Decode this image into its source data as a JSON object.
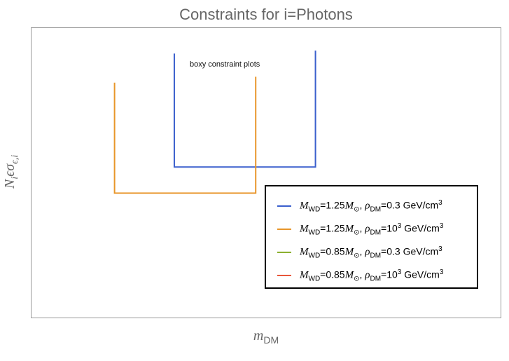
{
  "chart_data": {
    "type": "line",
    "title": "Constraints for i=Photons",
    "xlabel": "m_DM",
    "ylabel": "N_i ϵσ_ϵ,i",
    "annotation": "boxy constraint plots",
    "xlim": [
      0,
      100
    ],
    "ylim": [
      0,
      100
    ],
    "grid": false,
    "legend_placement": "bottom-right",
    "series": [
      {
        "name": "M_WD=1.25M_⊙, ρ_DM=0.3 GeV/cm3",
        "color": "#3a5fcd",
        "points": [
          [
            30.5,
            91
          ],
          [
            30.5,
            52
          ],
          [
            60.5,
            52
          ],
          [
            60.5,
            92
          ]
        ]
      },
      {
        "name": "M_WD=1.25M_⊙, ρ_DM=10^3 GeV/cm3",
        "color": "#e8962a",
        "points": [
          [
            17.8,
            81
          ],
          [
            17.8,
            43
          ],
          [
            47.8,
            43
          ],
          [
            47.8,
            83
          ]
        ]
      },
      {
        "name": "M_WD=0.85M_⊙, ρ_DM=0.3 GeV/cm3",
        "color": "#8cb030",
        "points": []
      },
      {
        "name": "M_WD=0.85M_⊙, ρ_DM=10^3 GeV/cm3",
        "color": "#e8563a",
        "points": []
      }
    ]
  },
  "legend": {
    "items": [
      {
        "m_sym": "M",
        "m_sub": "WD",
        "m_val": "=1.25",
        "sun_sym": "M",
        "sun_sub": "⊙",
        "rho_sym": "ρ",
        "rho_sub": "DM",
        "rho_val": "=0.3",
        "rho_exp": "",
        "unit": "GeV/cm",
        "unit_exp": "3"
      },
      {
        "m_sym": "M",
        "m_sub": "WD",
        "m_val": "=1.25",
        "sun_sym": "M",
        "sun_sub": "⊙",
        "rho_sym": "ρ",
        "rho_sub": "DM",
        "rho_val": "=10",
        "rho_exp": "3",
        "unit": "GeV/cm",
        "unit_exp": "3"
      },
      {
        "m_sym": "M",
        "m_sub": "WD",
        "m_val": "=0.85",
        "sun_sym": "M",
        "sun_sub": "⊙",
        "rho_sym": "ρ",
        "rho_sub": "DM",
        "rho_val": "=0.3",
        "rho_exp": "",
        "unit": "GeV/cm",
        "unit_exp": "3"
      },
      {
        "m_sym": "M",
        "m_sub": "WD",
        "m_val": "=0.85",
        "sun_sym": "M",
        "sun_sub": "⊙",
        "rho_sym": "ρ",
        "rho_sub": "DM",
        "rho_val": "=10",
        "rho_exp": "3",
        "unit": "GeV/cm",
        "unit_exp": "3"
      }
    ]
  },
  "axes_text": {
    "x_main": "m",
    "x_sub": "DM",
    "y_main": "N",
    "y_sub1": "i",
    "y_mid": "ϵσ",
    "y_sub2": "ϵ,i"
  }
}
